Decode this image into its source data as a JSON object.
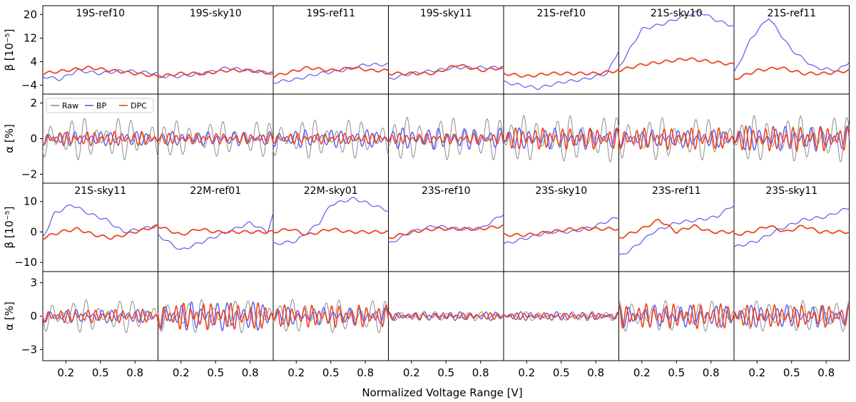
{
  "chart_data": {
    "type": "line",
    "xlabel": "Normalized Voltage Range [V]",
    "xlim": [
      0,
      1
    ],
    "xticks": [
      0.2,
      0.5,
      0.8
    ],
    "xtick_labels": [
      "0.2",
      "0.5",
      "0.8"
    ],
    "legend": {
      "placement": "top-left",
      "panel": "21S-sky10 alpha row",
      "entries": [
        "Raw",
        "BP",
        "DPC"
      ]
    },
    "colors": {
      "Raw": "#8c8c8c",
      "BP": "#5a5af0",
      "DPC": "#ee4422"
    },
    "rows": [
      {
        "kind": "beta",
        "ylabel": "β [10⁻⁵]",
        "ylim": [
          -7,
          23
        ],
        "yticks": [
          -4,
          4,
          12,
          20
        ],
        "ytick_labels": [
          "−4",
          "4",
          "12",
          "20"
        ]
      },
      {
        "kind": "alpha",
        "ylabel": "α [%]",
        "ylim": [
          -2.5,
          2.5
        ],
        "yticks": [
          -2,
          0,
          2
        ],
        "ytick_labels": [
          "−2",
          "0",
          "2"
        ]
      },
      {
        "kind": "beta",
        "ylabel": "β [10⁻⁵]",
        "ylim": [
          -13,
          16
        ],
        "yticks": [
          -10,
          0,
          10
        ],
        "ytick_labels": [
          "−10",
          "0",
          "10"
        ]
      },
      {
        "kind": "alpha",
        "ylabel": "α [%]",
        "ylim": [
          -4,
          4
        ],
        "yticks": [
          -3,
          0,
          3
        ],
        "ytick_labels": [
          "−3",
          "0",
          "3"
        ]
      }
    ],
    "panels": [
      [
        "19S-ref10",
        "19S-sky10",
        "19S-ref11",
        "19S-sky11",
        "21S-ref10",
        "21S-sky10",
        "21S-ref11"
      ],
      [
        "21S-sky11",
        "22M-ref01",
        "22M-sky01",
        "23S-ref10",
        "23S-sky10",
        "23S-ref11",
        "23S-sky11"
      ]
    ],
    "beta_series": {
      "19S-ref10": {
        "BP": [
          [
            0,
            -1
          ],
          [
            0.15,
            -2
          ],
          [
            0.3,
            1
          ],
          [
            0.5,
            0
          ],
          [
            0.7,
            1
          ],
          [
            1,
            0
          ]
        ],
        "DPC": [
          [
            0,
            0
          ],
          [
            0.2,
            1
          ],
          [
            0.4,
            2
          ],
          [
            0.6,
            1
          ],
          [
            0.8,
            0
          ],
          [
            1,
            -1
          ]
        ]
      },
      "19S-sky10": {
        "BP": [
          [
            0,
            -1
          ],
          [
            0.2,
            -1
          ],
          [
            0.4,
            0
          ],
          [
            0.6,
            2
          ],
          [
            0.8,
            1
          ],
          [
            1,
            0
          ]
        ],
        "DPC": [
          [
            0,
            -1
          ],
          [
            0.2,
            0
          ],
          [
            0.4,
            0
          ],
          [
            0.6,
            1
          ],
          [
            0.8,
            1
          ],
          [
            1,
            0
          ]
        ]
      },
      "19S-ref11": {
        "BP": [
          [
            0,
            -3
          ],
          [
            0.2,
            -2
          ],
          [
            0.4,
            0
          ],
          [
            0.6,
            1
          ],
          [
            0.8,
            3
          ],
          [
            1,
            3
          ]
        ],
        "DPC": [
          [
            0,
            -1
          ],
          [
            0.3,
            2
          ],
          [
            0.5,
            1
          ],
          [
            0.7,
            2
          ],
          [
            0.85,
            1
          ],
          [
            1,
            1
          ]
        ]
      },
      "19S-sky11": {
        "BP": [
          [
            0,
            -2
          ],
          [
            0.2,
            0
          ],
          [
            0.4,
            1
          ],
          [
            0.6,
            2
          ],
          [
            0.8,
            2
          ],
          [
            1,
            2
          ]
        ],
        "DPC": [
          [
            0,
            0
          ],
          [
            0.2,
            0
          ],
          [
            0.4,
            0
          ],
          [
            0.6,
            3
          ],
          [
            0.8,
            1
          ],
          [
            1,
            2
          ]
        ]
      },
      "21S-ref10": {
        "BP": [
          [
            0,
            -3
          ],
          [
            0.15,
            -4
          ],
          [
            0.3,
            -5
          ],
          [
            0.5,
            -3
          ],
          [
            0.7,
            -2
          ],
          [
            0.9,
            0
          ],
          [
            1,
            8
          ]
        ],
        "DPC": [
          [
            0,
            0
          ],
          [
            0.2,
            -1
          ],
          [
            0.4,
            0
          ],
          [
            0.6,
            0
          ],
          [
            0.8,
            0
          ],
          [
            1,
            1
          ]
        ]
      },
      "21S-sky10": {
        "BP": [
          [
            0,
            2
          ],
          [
            0.2,
            15
          ],
          [
            0.4,
            17
          ],
          [
            0.6,
            20
          ],
          [
            0.7,
            21
          ],
          [
            0.85,
            18
          ],
          [
            1,
            16
          ]
        ],
        "DPC": [
          [
            0,
            1
          ],
          [
            0.2,
            3
          ],
          [
            0.4,
            4
          ],
          [
            0.6,
            5
          ],
          [
            0.8,
            4
          ],
          [
            1,
            3
          ]
        ]
      },
      "21S-ref11": {
        "BP": [
          [
            0,
            0
          ],
          [
            0.15,
            12
          ],
          [
            0.3,
            19
          ],
          [
            0.5,
            8
          ],
          [
            0.7,
            2
          ],
          [
            0.9,
            1
          ],
          [
            1,
            4
          ]
        ],
        "DPC": [
          [
            0,
            -2
          ],
          [
            0.2,
            1
          ],
          [
            0.4,
            2
          ],
          [
            0.6,
            0
          ],
          [
            0.8,
            0
          ],
          [
            1,
            1
          ]
        ]
      },
      "21S-sky11": {
        "BP": [
          [
            0,
            -2
          ],
          [
            0.1,
            6
          ],
          [
            0.25,
            9
          ],
          [
            0.4,
            6
          ],
          [
            0.55,
            4
          ],
          [
            0.7,
            0
          ],
          [
            0.85,
            1
          ],
          [
            1,
            2
          ]
        ],
        "DPC": [
          [
            0,
            -2
          ],
          [
            0.15,
            0
          ],
          [
            0.3,
            1
          ],
          [
            0.45,
            -1
          ],
          [
            0.6,
            -2
          ],
          [
            0.8,
            0
          ],
          [
            1,
            2
          ]
        ]
      },
      "22M-ref01": {
        "BP": [
          [
            0,
            -1
          ],
          [
            0.2,
            -6
          ],
          [
            0.4,
            -3
          ],
          [
            0.6,
            0
          ],
          [
            0.8,
            3
          ],
          [
            0.95,
            0
          ],
          [
            1,
            6
          ]
        ],
        "DPC": [
          [
            0,
            2
          ],
          [
            0.2,
            -1
          ],
          [
            0.35,
            1
          ],
          [
            0.5,
            0
          ],
          [
            0.7,
            0
          ],
          [
            0.8,
            0
          ],
          [
            1,
            0
          ]
        ]
      },
      "22M-sky01": {
        "BP": [
          [
            0,
            -4
          ],
          [
            0.2,
            -3
          ],
          [
            0.4,
            3
          ],
          [
            0.5,
            9
          ],
          [
            0.7,
            11
          ],
          [
            0.85,
            9
          ],
          [
            1,
            7
          ]
        ],
        "DPC": [
          [
            0,
            0
          ],
          [
            0.15,
            1
          ],
          [
            0.3,
            -1
          ],
          [
            0.5,
            1
          ],
          [
            0.65,
            0
          ],
          [
            0.8,
            0
          ],
          [
            1,
            0
          ]
        ]
      },
      "23S-ref10": {
        "BP": [
          [
            0,
            -4
          ],
          [
            0.2,
            0
          ],
          [
            0.4,
            2
          ],
          [
            0.6,
            1
          ],
          [
            0.8,
            1
          ],
          [
            1,
            6
          ]
        ],
        "DPC": [
          [
            0,
            -2
          ],
          [
            0.2,
            0
          ],
          [
            0.4,
            1
          ],
          [
            0.6,
            1
          ],
          [
            0.8,
            1
          ],
          [
            1,
            2
          ]
        ]
      },
      "23S-sky10": {
        "BP": [
          [
            0,
            -4
          ],
          [
            0.2,
            -2
          ],
          [
            0.4,
            0
          ],
          [
            0.6,
            0
          ],
          [
            0.8,
            2
          ],
          [
            1,
            5
          ]
        ],
        "DPC": [
          [
            0,
            -1
          ],
          [
            0.2,
            -1
          ],
          [
            0.4,
            0
          ],
          [
            0.6,
            1
          ],
          [
            0.8,
            1
          ],
          [
            1,
            1
          ]
        ]
      },
      "23S-ref11": {
        "BP": [
          [
            0,
            -8
          ],
          [
            0.1,
            -6
          ],
          [
            0.3,
            0
          ],
          [
            0.5,
            3
          ],
          [
            0.7,
            4
          ],
          [
            0.85,
            5
          ],
          [
            1,
            9
          ]
        ],
        "DPC": [
          [
            0,
            -2
          ],
          [
            0.2,
            1
          ],
          [
            0.35,
            4
          ],
          [
            0.5,
            0
          ],
          [
            0.65,
            2
          ],
          [
            0.8,
            0
          ],
          [
            1,
            0
          ]
        ]
      },
      "23S-sky11": {
        "BP": [
          [
            0,
            -5
          ],
          [
            0.2,
            -3
          ],
          [
            0.4,
            1
          ],
          [
            0.6,
            4
          ],
          [
            0.8,
            5
          ],
          [
            1,
            8
          ]
        ],
        "DPC": [
          [
            0,
            -1
          ],
          [
            0.15,
            0
          ],
          [
            0.3,
            2
          ],
          [
            0.45,
            0
          ],
          [
            0.6,
            2
          ],
          [
            0.75,
            0
          ],
          [
            1,
            0
          ]
        ]
      }
    },
    "alpha_amplitude_pct": {
      "19S-ref10": {
        "Raw": 1.2,
        "BP": 0.4,
        "DPC": 0.4
      },
      "19S-sky10": {
        "Raw": 1.0,
        "BP": 0.4,
        "DPC": 0.3
      },
      "19S-ref11": {
        "Raw": 1.1,
        "BP": 0.5,
        "DPC": 0.3
      },
      "19S-sky11": {
        "Raw": 1.2,
        "BP": 0.6,
        "DPC": 0.3
      },
      "21S-ref10": {
        "Raw": 1.3,
        "BP": 0.6,
        "DPC": 0.6
      },
      "21S-sky10": {
        "Raw": 1.2,
        "BP": 0.5,
        "DPC": 0.6
      },
      "21S-ref11": {
        "Raw": 1.3,
        "BP": 0.7,
        "DPC": 0.7
      },
      "21S-sky11": {
        "Raw": 1.5,
        "BP": 0.6,
        "DPC": 0.6
      },
      "22M-ref01": {
        "Raw": 1.5,
        "BP": 1.3,
        "DPC": 1.2
      },
      "22M-sky01": {
        "Raw": 1.5,
        "BP": 0.8,
        "DPC": 1.0
      },
      "23S-ref10": {
        "Raw": 0.4,
        "BP": 0.4,
        "DPC": 0.3
      },
      "23S-sky10": {
        "Raw": 0.4,
        "BP": 0.4,
        "DPC": 0.3
      },
      "23S-ref11": {
        "Raw": 1.4,
        "BP": 1.0,
        "DPC": 1.1
      },
      "23S-sky11": {
        "Raw": 1.4,
        "BP": 1.0,
        "DPC": 1.0
      }
    }
  }
}
